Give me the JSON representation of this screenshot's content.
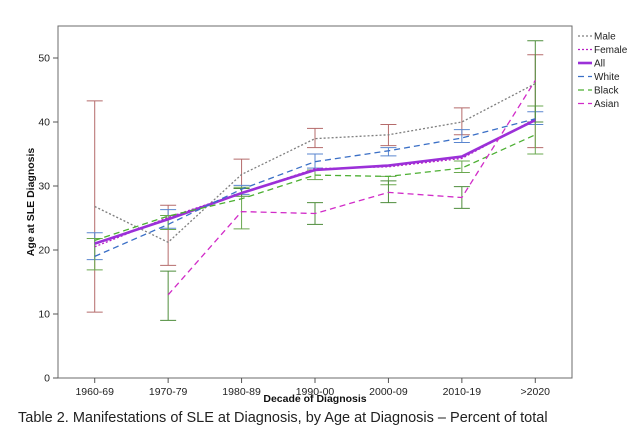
{
  "chart_data": {
    "type": "line",
    "title": "",
    "xlabel": "Decade of Diagnosis",
    "ylabel": "Age at SLE Diagnosis",
    "ylim": [
      0,
      55
    ],
    "yticks": [
      0,
      10,
      20,
      30,
      40,
      50
    ],
    "categories": [
      "1960-69",
      "1970-79",
      "1980-89",
      "1990-00",
      "2000-09",
      "2010-19",
      ">2020"
    ],
    "grid": false,
    "legend_position": "top-right",
    "series": [
      {
        "name": "Male",
        "color": "#7f7f7f",
        "style": "dotted",
        "values": [
          26.8,
          21.2,
          31.8,
          37.4,
          38.0,
          40.0,
          46.0
        ],
        "errors": [
          [
            10.3,
            43.3
          ],
          [
            17.6,
            27.0
          ],
          [
            29.6,
            34.2
          ],
          [
            36.0,
            39.0
          ],
          [
            36.3,
            39.6
          ],
          [
            38.0,
            42.2
          ],
          [
            36.0,
            50.5
          ]
        ],
        "error_color": "#b56b6b"
      },
      {
        "name": "Female",
        "color": "#b81fc4",
        "style": "dotted",
        "values": [
          20.5,
          25.1,
          28.9,
          32.7,
          33.0,
          34.3,
          40.5
        ]
      },
      {
        "name": "All",
        "color": "#9b30d8",
        "style": "solid",
        "values": [
          21.0,
          24.8,
          28.9,
          32.5,
          33.2,
          34.6,
          40.3
        ]
      },
      {
        "name": "White",
        "color": "#3a6fc6",
        "style": "dashed",
        "values": [
          19.0,
          24.0,
          29.5,
          33.8,
          35.5,
          37.5,
          40.5
        ],
        "errors": [
          [
            18.5,
            22.7
          ],
          [
            23.4,
            26.3
          ],
          [
            28.7,
            30.1
          ],
          [
            32.8,
            35.0
          ],
          [
            34.7,
            36.0
          ],
          [
            36.8,
            38.8
          ],
          [
            39.6,
            41.6
          ]
        ],
        "error_color": "#5a86cf"
      },
      {
        "name": "Black",
        "color": "#4caf32",
        "style": "dashed",
        "values": [
          21.5,
          25.3,
          28.0,
          31.7,
          31.5,
          32.8,
          38.0
        ],
        "errors": [
          [
            16.9,
            21.8
          ],
          [
            23.2,
            25.4
          ],
          [
            23.3,
            29.8
          ],
          [
            31.0,
            32.5
          ],
          [
            30.2,
            31.5
          ],
          [
            32.1,
            33.9
          ],
          [
            35.0,
            42.5
          ]
        ],
        "error_color": "#6aa84f"
      },
      {
        "name": "Asian",
        "color": "#d12bc8",
        "style": "dashed",
        "values": [
          null,
          13.0,
          26.0,
          25.7,
          29.0,
          28.2,
          46.5
        ],
        "errors": [
          [
            null,
            null
          ],
          [
            9.0,
            16.7
          ],
          [
            28.4,
            29.6
          ],
          [
            24.0,
            27.4
          ],
          [
            27.4,
            30.8
          ],
          [
            26.5,
            29.9
          ],
          [
            40.0,
            52.7
          ]
        ],
        "error_color": "#4e8d3b"
      }
    ]
  },
  "caption": "Table 2. Manifestations of SLE at Diagnosis, by Age at Diagnosis – Percent of total"
}
